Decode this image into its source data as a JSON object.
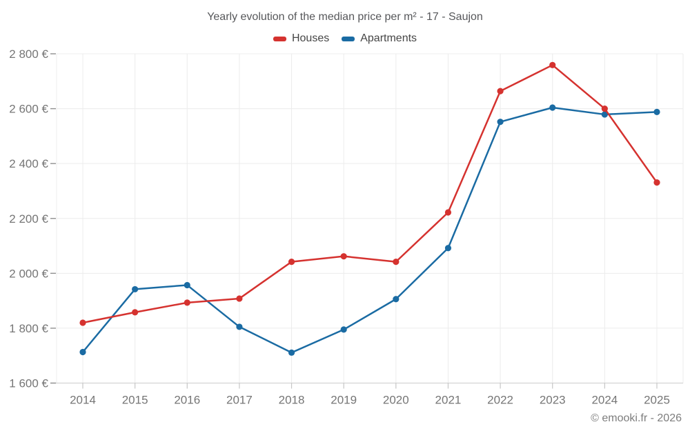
{
  "header": {
    "title": "Yearly evolution of the median price per m² - 17 - Saujon"
  },
  "footer": {
    "credit": "© emooki.fr - 2026"
  },
  "chart_data": {
    "type": "line",
    "title": "Yearly evolution of the median price per m² - 17 - Saujon",
    "categories": [
      "2014",
      "2015",
      "2016",
      "2017",
      "2018",
      "2019",
      "2020",
      "2021",
      "2022",
      "2023",
      "2024",
      "2025"
    ],
    "series": [
      {
        "name": "Houses",
        "color": "#d5322f",
        "values": [
          1820,
          1858,
          1893,
          1908,
          2042,
          2062,
          2042,
          2222,
          2664,
          2759,
          2600,
          2331
        ]
      },
      {
        "name": "Apartments",
        "color": "#1a6ba3",
        "values": [
          1713,
          1942,
          1957,
          1805,
          1711,
          1795,
          1906,
          2092,
          2552,
          2604,
          2579,
          2588
        ]
      }
    ],
    "ylim": [
      1600,
      2800
    ],
    "y_ticks": [
      1600,
      1800,
      2000,
      2200,
      2400,
      2600,
      2800
    ],
    "y_tick_labels": [
      "1 600 €",
      "1 800 €",
      "2 000 €",
      "2 200 €",
      "2 400 €",
      "2 600 €",
      "2 800 €"
    ],
    "xlabel": "",
    "ylabel": "",
    "grid": true,
    "legend_position": "top",
    "colors": {
      "grid_line": "#ececec",
      "axis_line": "#d2d2d2",
      "y_tick": "#8f8f8f",
      "x_tick": "#c6c6c6",
      "tick_label": "#757575"
    }
  }
}
